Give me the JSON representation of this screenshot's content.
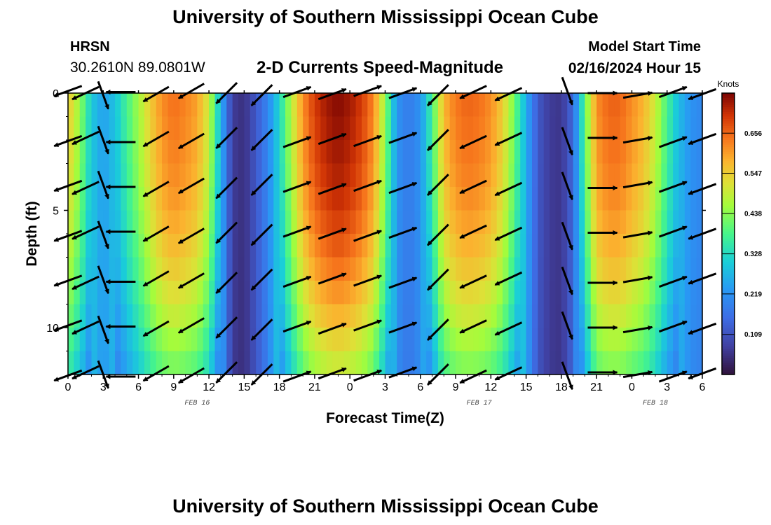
{
  "header": {
    "title": "University of Southern Mississippi Ocean Cube",
    "station": "HRSN",
    "coords": "30.2610N  89.0801W",
    "subtitle": "2-D Currents Speed-Magnitude",
    "model_start_label": "Model Start Time",
    "model_start_value": "02/16/2024 Hour 15"
  },
  "footer": {
    "title": "University of Southern Mississippi Ocean Cube"
  },
  "chart_data": {
    "type": "heatmap",
    "title": "2-D Currents Speed-Magnitude",
    "xlabel": "Forecast Time(Z)",
    "ylabel": "Depth (ft)",
    "colorbar_label": "Knots",
    "colorbar_ticks": [
      "0.656",
      "0.547",
      "0.438",
      "0.328",
      "0.219",
      "0.109"
    ],
    "colorbar_tick_values": [
      0.656,
      0.547,
      0.438,
      0.328,
      0.219,
      0.109
    ],
    "color_range": [
      0.0,
      0.765
    ],
    "x_range_hours": [
      0,
      54
    ],
    "x_ticks": [
      "0",
      "3",
      "6",
      "9",
      "12",
      "15",
      "18",
      "21",
      "0",
      "3",
      "6",
      "9",
      "12",
      "15",
      "18",
      "21",
      "0",
      "3",
      "6"
    ],
    "x_tick_hours": [
      0,
      3,
      6,
      9,
      12,
      15,
      18,
      21,
      24,
      27,
      30,
      33,
      36,
      39,
      42,
      45,
      48,
      51,
      54
    ],
    "date_labels": [
      "FEB 16",
      "FEB 17",
      "FEB 18"
    ],
    "date_label_hours": [
      11,
      35,
      50
    ],
    "y_range_ft": [
      0,
      12
    ],
    "y_ticks": [
      "0",
      "5",
      "10"
    ],
    "y_tick_values": [
      0,
      5,
      10
    ],
    "grid": false,
    "speed_by_hour": [
      [
        0,
        0.56
      ],
      [
        1,
        0.45
      ],
      [
        2,
        0.3
      ],
      [
        3,
        0.24
      ],
      [
        4,
        0.29
      ],
      [
        5,
        0.38
      ],
      [
        6,
        0.46
      ],
      [
        7,
        0.55
      ],
      [
        8,
        0.62
      ],
      [
        9,
        0.65
      ],
      [
        10,
        0.63
      ],
      [
        11,
        0.6
      ],
      [
        12,
        0.5
      ],
      [
        13,
        0.27
      ],
      [
        14,
        0.07
      ],
      [
        15,
        0.05
      ],
      [
        16,
        0.12
      ],
      [
        17,
        0.2
      ],
      [
        18,
        0.32
      ],
      [
        19,
        0.48
      ],
      [
        20,
        0.62
      ],
      [
        21,
        0.7
      ],
      [
        22,
        0.74
      ],
      [
        23,
        0.76
      ],
      [
        24,
        0.74
      ],
      [
        25,
        0.7
      ],
      [
        26,
        0.63
      ],
      [
        27,
        0.45
      ],
      [
        28,
        0.22
      ],
      [
        29,
        0.18
      ],
      [
        30,
        0.22
      ],
      [
        31,
        0.38
      ],
      [
        32,
        0.58
      ],
      [
        33,
        0.64
      ],
      [
        34,
        0.66
      ],
      [
        35,
        0.65
      ],
      [
        36,
        0.62
      ],
      [
        37,
        0.55
      ],
      [
        38,
        0.42
      ],
      [
        39,
        0.26
      ],
      [
        40,
        0.12
      ],
      [
        41,
        0.07
      ],
      [
        42,
        0.06
      ],
      [
        43,
        0.15
      ],
      [
        44,
        0.4
      ],
      [
        45,
        0.62
      ],
      [
        46,
        0.66
      ],
      [
        47,
        0.66
      ],
      [
        48,
        0.62
      ],
      [
        49,
        0.58
      ],
      [
        50,
        0.5
      ],
      [
        51,
        0.38
      ],
      [
        52,
        0.28
      ],
      [
        53,
        0.22
      ],
      [
        54,
        0.2
      ]
    ],
    "depth_factor": [
      [
        0,
        1.0
      ],
      [
        1,
        0.99
      ],
      [
        2,
        0.98
      ],
      [
        3,
        0.97
      ],
      [
        4,
        0.95
      ],
      [
        5,
        0.93
      ],
      [
        6,
        0.9
      ],
      [
        7,
        0.87
      ],
      [
        8,
        0.83
      ],
      [
        9,
        0.79
      ],
      [
        10,
        0.74
      ],
      [
        11,
        0.69
      ],
      [
        12,
        0.64
      ]
    ],
    "vector_hours": [
      0,
      1.5,
      3,
      4.5,
      7.5,
      10.5,
      13.5,
      16.5,
      19.5,
      22.5,
      25.5,
      28.5,
      31.5,
      34.5,
      37.5,
      42.5,
      45.5,
      48.5,
      51.5,
      54
    ],
    "vector_depths_ft": [
      0,
      2,
      4,
      6,
      8,
      10,
      12
    ],
    "vector_directions_deg": [
      250,
      245,
      160,
      270,
      240,
      240,
      225,
      225,
      70,
      70,
      70,
      70,
      225,
      245,
      245,
      160,
      90,
      80,
      70,
      250
    ],
    "vector_scale": 42
  }
}
